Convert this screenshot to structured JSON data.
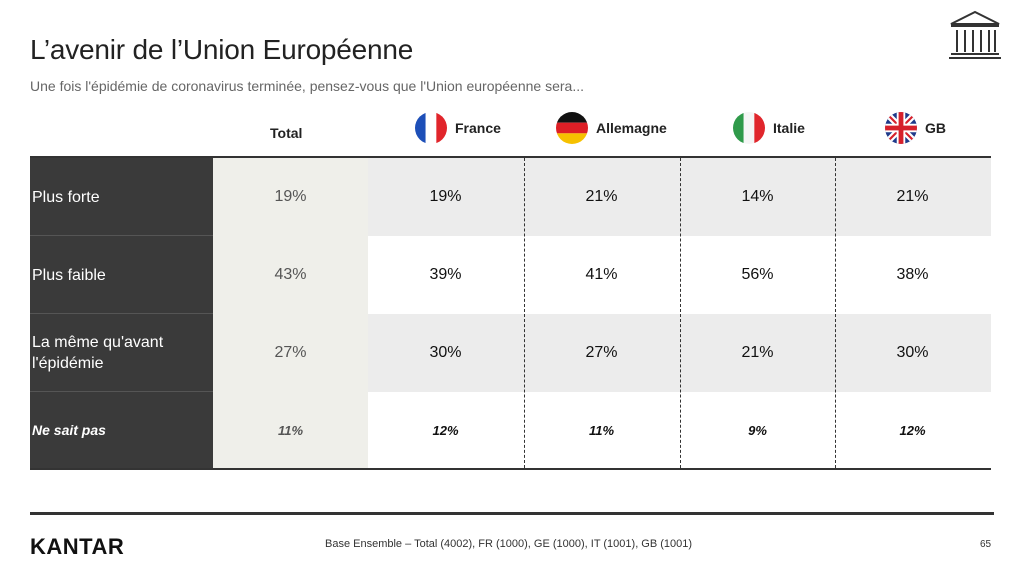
{
  "title": "L’avenir de l’Union Européenne",
  "subtitle": "Une fois l'épidémie de coronavirus terminée, pensez-vous que l'Union européenne sera...",
  "icon": "building-icon",
  "columns": [
    {
      "label": "Total",
      "flag": ""
    },
    {
      "label": "France",
      "flag": "france-flag-icon"
    },
    {
      "label": "Allemagne",
      "flag": "germany-flag-icon"
    },
    {
      "label": "Italie",
      "flag": "italy-flag-icon"
    },
    {
      "label": "GB",
      "flag": "uk-flag-icon"
    }
  ],
  "rows": [
    {
      "label": "Plus forte",
      "values": [
        "19%",
        "19%",
        "21%",
        "14%",
        "21%"
      ]
    },
    {
      "label": "Plus faible",
      "values": [
        "43%",
        "39%",
        "41%",
        "56%",
        "38%"
      ]
    },
    {
      "label": "La même qu'avant l'épidémie",
      "values": [
        "27%",
        "30%",
        "27%",
        "21%",
        "30%"
      ]
    },
    {
      "label": "Ne sait pas",
      "values": [
        "11%",
        "12%",
        "11%",
        "9%",
        "12%"
      ]
    }
  ],
  "colors": {
    "label_bg": "#3a3a3a",
    "total_bg": "#efefea",
    "band_bg": "#ececec"
  },
  "footer": {
    "logo": "KANTAR",
    "base_note": "Base Ensemble – Total (4002), FR (1000), GE (1000), IT (1001), GB (1001)",
    "page_number": "65"
  }
}
